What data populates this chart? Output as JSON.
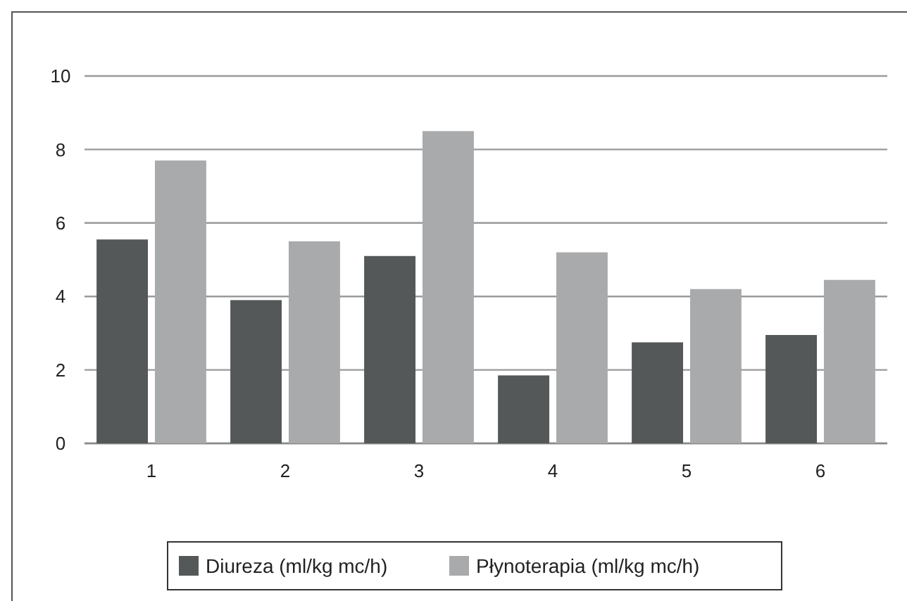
{
  "chart_data": {
    "type": "bar",
    "categories": [
      "1",
      "2",
      "3",
      "4",
      "5",
      "6"
    ],
    "series": [
      {
        "name": "Diureza (ml/kg mc/h)",
        "color": "#555859",
        "values": [
          5.55,
          3.9,
          5.1,
          1.85,
          2.75,
          2.95
        ]
      },
      {
        "name": "Płynoterapia (ml/kg mc/h)",
        "color": "#a9aaab",
        "values": [
          7.7,
          5.5,
          8.5,
          5.2,
          4.2,
          4.45
        ]
      }
    ],
    "ylim": [
      0,
      10
    ],
    "yticks": [
      0,
      2,
      4,
      6,
      8,
      10
    ],
    "grid": "y",
    "legend": "bottom"
  }
}
